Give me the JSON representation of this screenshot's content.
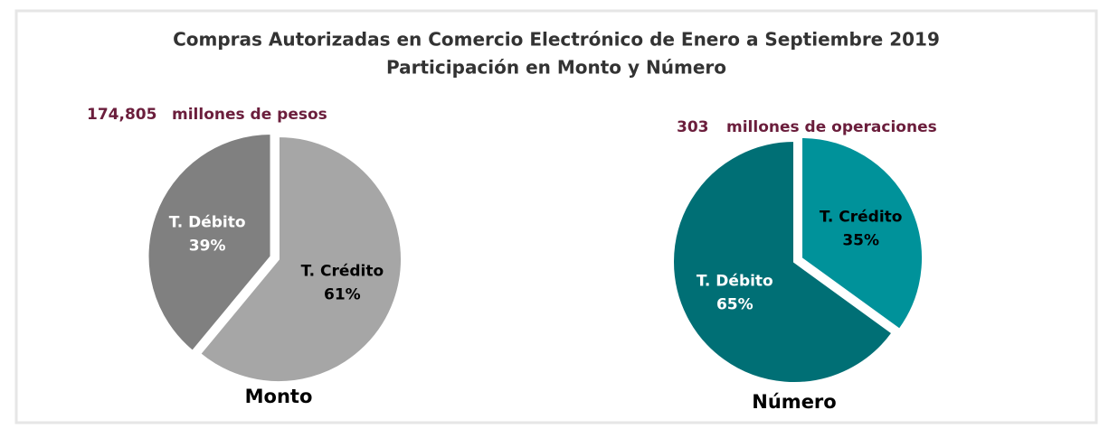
{
  "title": "Compras Autorizadas en Comercio Electrónico de Enero a Septiembre 2019",
  "subtitle": "Participación en Monto y Número",
  "chart_data": [
    {
      "type": "pie",
      "title": "Monto",
      "total": {
        "value": 174805,
        "label": "174,805"
      },
      "total_unit": "millones de pesos",
      "categories": [
        "T. Crédito",
        "T. Débito"
      ],
      "values": [
        61,
        39
      ],
      "value_labels": [
        "61%",
        "39%"
      ],
      "colors": [
        "#a6a6a6",
        "#808080"
      ],
      "label_colors": [
        "#000000",
        "#ffffff"
      ],
      "explode": [
        false,
        true
      ]
    },
    {
      "type": "pie",
      "title": "Número",
      "total": 303,
      "total_unit": "millones de operaciones",
      "categories": [
        "T. Crédito",
        "T. Débito"
      ],
      "values": [
        35,
        65
      ],
      "value_labels": [
        "35%",
        "65%"
      ],
      "colors": [
        "#00929a",
        "#006f75"
      ],
      "label_colors": [
        "#000000",
        "#ffffff"
      ],
      "explode": [
        true,
        false
      ]
    }
  ]
}
